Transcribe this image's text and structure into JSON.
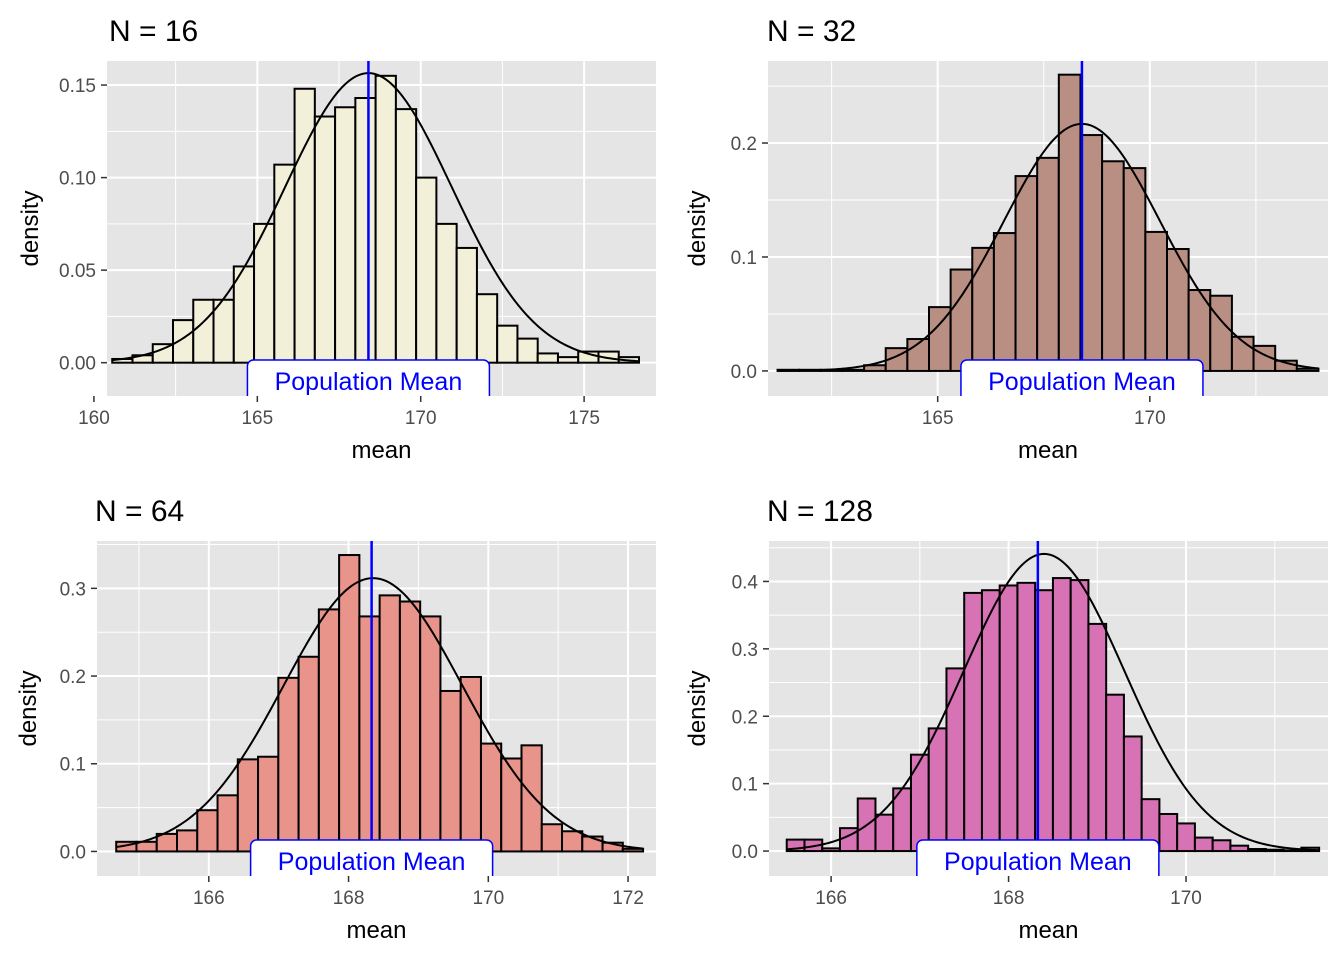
{
  "colors": {
    "panel_background": "#e5e5e5",
    "grid": "#ffffff",
    "bar_outline": "#000000",
    "curve": "#000000",
    "population_mean_line": "#0000ff",
    "population_mean_label_text": "#0000ff",
    "tick_text": "#4d4d4d"
  },
  "chart_data": [
    {
      "type": "bar",
      "title": "N = 16",
      "xlabel": "mean",
      "ylabel": "density",
      "fill": "#f3f0da",
      "xlim": [
        160.4,
        177.2
      ],
      "ylim": [
        -0.018,
        0.163
      ],
      "x_ticks": [
        160,
        165,
        170,
        175
      ],
      "x_tick_labels": [
        "160",
        "165",
        "170",
        "175"
      ],
      "y_ticks": [
        0.0,
        0.05,
        0.1,
        0.15
      ],
      "y_tick_labels": [
        "0.00",
        "0.05",
        "0.10",
        "0.15"
      ],
      "bin_width": 0.62,
      "bin_centers": [
        160.87,
        161.49,
        162.11,
        162.73,
        163.35,
        163.97,
        164.59,
        165.21,
        165.83,
        166.45,
        167.07,
        167.69,
        168.31,
        168.93,
        169.55,
        170.17,
        170.79,
        171.41,
        172.03,
        172.65,
        173.27,
        173.89,
        174.51,
        175.13,
        175.75,
        176.37
      ],
      "values": [
        0.002,
        0.004,
        0.01,
        0.023,
        0.034,
        0.034,
        0.052,
        0.075,
        0.107,
        0.148,
        0.133,
        0.138,
        0.143,
        0.155,
        0.137,
        0.1,
        0.075,
        0.062,
        0.037,
        0.02,
        0.013,
        0.005,
        0.003,
        0.006,
        0.006,
        0.003
      ],
      "normal_curve": {
        "mean": 168.4,
        "sd": 2.55
      },
      "population_mean": 168.4,
      "population_mean_label": "Population Mean"
    },
    {
      "type": "bar",
      "title": "N = 32",
      "xlabel": "mean",
      "ylabel": "density",
      "fill": "#b88f82",
      "xlim": [
        161.0,
        174.2
      ],
      "ylim": [
        -0.022,
        0.272
      ],
      "x_ticks": [
        165,
        170
      ],
      "x_tick_labels": [
        "165",
        "170"
      ],
      "y_ticks": [
        0.0,
        0.1,
        0.2
      ],
      "y_tick_labels": [
        "0.0",
        "0.1",
        "0.2"
      ],
      "bin_width": 0.51,
      "bin_centers": [
        161.48,
        161.99,
        162.5,
        163.01,
        163.52,
        164.03,
        164.54,
        165.05,
        165.56,
        166.07,
        166.58,
        167.09,
        167.6,
        168.11,
        168.62,
        169.13,
        169.64,
        170.15,
        170.66,
        171.17,
        171.68,
        172.19,
        172.7,
        173.21,
        173.72
      ],
      "values": [
        0.001,
        0.001,
        0.001,
        0.001,
        0.005,
        0.02,
        0.028,
        0.056,
        0.089,
        0.108,
        0.121,
        0.171,
        0.187,
        0.26,
        0.207,
        0.184,
        0.178,
        0.122,
        0.107,
        0.071,
        0.066,
        0.03,
        0.022,
        0.009,
        0.002
      ],
      "normal_curve": {
        "mean": 168.4,
        "sd": 1.84
      },
      "population_mean": 168.4,
      "population_mean_label": "Population Mean"
    },
    {
      "type": "bar",
      "title": "N = 64",
      "xlabel": "mean",
      "ylabel": "density",
      "fill": "#e8948a",
      "xlim": [
        164.4,
        172.4
      ],
      "ylim": [
        -0.028,
        0.354
      ],
      "x_ticks": [
        166,
        168,
        170,
        172
      ],
      "x_tick_labels": [
        "166",
        "168",
        "170",
        "172"
      ],
      "y_ticks": [
        0.0,
        0.1,
        0.2,
        0.3
      ],
      "y_tick_labels": [
        "0.0",
        "0.1",
        "0.2",
        "0.3"
      ],
      "bin_width": 0.29,
      "bin_centers": [
        164.82,
        165.11,
        165.4,
        165.69,
        165.98,
        166.27,
        166.56,
        166.85,
        167.14,
        167.43,
        167.72,
        168.01,
        168.3,
        168.59,
        168.88,
        169.17,
        169.46,
        169.75,
        170.04,
        170.33,
        170.62,
        170.91,
        171.2,
        171.49,
        171.78,
        172.07
      ],
      "values": [
        0.011,
        0.011,
        0.02,
        0.024,
        0.047,
        0.064,
        0.105,
        0.108,
        0.198,
        0.222,
        0.276,
        0.338,
        0.268,
        0.292,
        0.285,
        0.268,
        0.183,
        0.199,
        0.123,
        0.106,
        0.121,
        0.031,
        0.023,
        0.017,
        0.01,
        0.003
      ],
      "normal_curve": {
        "mean": 168.35,
        "sd": 1.28
      },
      "population_mean": 168.33,
      "population_mean_label": "Population Mean"
    },
    {
      "type": "bar",
      "title": "N = 128",
      "xlabel": "mean",
      "ylabel": "density",
      "fill": "#d773b4",
      "xlim": [
        165.3,
        171.6
      ],
      "ylim": [
        -0.037,
        0.46
      ],
      "x_ticks": [
        166,
        168,
        170
      ],
      "x_tick_labels": [
        "166",
        "168",
        "170"
      ],
      "y_ticks": [
        0.0,
        0.1,
        0.2,
        0.3,
        0.4
      ],
      "y_tick_labels": [
        "0.0",
        "0.1",
        "0.2",
        "0.3",
        "0.4"
      ],
      "bin_width": 0.2,
      "bin_centers": [
        165.6,
        165.8,
        166.0,
        166.2,
        166.4,
        166.6,
        166.8,
        167.0,
        167.2,
        167.4,
        167.6,
        167.8,
        168.0,
        168.2,
        168.4,
        168.6,
        168.8,
        169.0,
        169.2,
        169.4,
        169.6,
        169.8,
        170.0,
        170.2,
        170.4,
        170.6,
        170.8,
        171.0,
        171.2,
        171.4
      ],
      "values": [
        0.017,
        0.017,
        0.004,
        0.034,
        0.078,
        0.054,
        0.093,
        0.143,
        0.182,
        0.271,
        0.383,
        0.387,
        0.394,
        0.398,
        0.387,
        0.405,
        0.402,
        0.337,
        0.232,
        0.17,
        0.077,
        0.055,
        0.041,
        0.02,
        0.016,
        0.008,
        0.003,
        0.002,
        0.001,
        0.005
      ],
      "normal_curve": {
        "mean": 168.4,
        "sd": 0.905
      },
      "population_mean": 168.33,
      "population_mean_label": "Population Mean"
    }
  ]
}
